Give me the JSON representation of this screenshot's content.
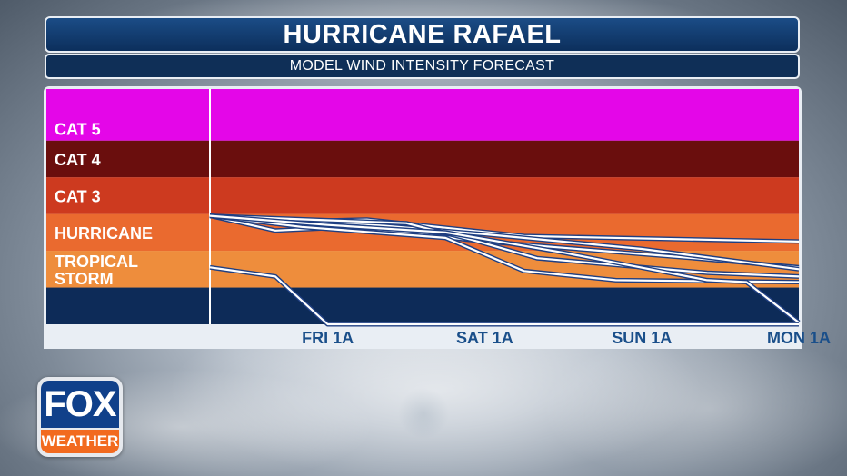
{
  "header": {
    "title": "HURRICANE RAFAEL",
    "subtitle": "MODEL WIND INTENSITY FORECAST"
  },
  "logo": {
    "line1": "FOX",
    "line2": "WEATHER"
  },
  "colors": {
    "cat5": "#e406e8",
    "cat4": "#6a0e0d",
    "cat3": "#cd3a1f",
    "hurricane": "#ea6a2f",
    "tropical_storm": "#ee8d3c",
    "below_tropical_storm": "#0d2b58",
    "model_line": "#ffffff",
    "model_line_outline": "#1f3f82",
    "axis_label": "#1a4f8a"
  },
  "chart_data": {
    "type": "line",
    "title": "",
    "xlabel": "",
    "ylabel": "",
    "x_ticks": [
      "FRI  1A",
      "SAT  1A",
      "SUN  1A",
      "MON  1A"
    ],
    "x_range_hours": [
      -18,
      72
    ],
    "bands": [
      {
        "key": "below",
        "label": "",
        "from": 0,
        "to": 1
      },
      {
        "key": "tropical_storm",
        "label": "TROPICAL\nSTORM",
        "label_lines": [
          "TROPICAL",
          "STORM"
        ],
        "from": 1,
        "to": 2
      },
      {
        "key": "hurricane",
        "label": "HURRICANE",
        "label_lines": [
          "HURRICANE"
        ],
        "from": 2,
        "to": 3
      },
      {
        "key": "cat3",
        "label": "CAT 3",
        "label_lines": [
          "CAT 3"
        ],
        "from": 3,
        "to": 4
      },
      {
        "key": "cat4",
        "label": "CAT 4",
        "label_lines": [
          "CAT 4"
        ],
        "from": 4,
        "to": 5
      },
      {
        "key": "cat5",
        "label": "CAT 5",
        "label_lines": [
          "CAT 5"
        ],
        "from": 5,
        "to": 6.4
      }
    ],
    "series": [
      {
        "values": [
          [
            -18,
            2.95
          ],
          [
            -6,
            2.8
          ],
          [
            6,
            2.85
          ],
          [
            30,
            2.4
          ],
          [
            72,
            2.25
          ]
        ]
      },
      {
        "values": [
          [
            -18,
            2.95
          ],
          [
            -8,
            2.55
          ],
          [
            4,
            2.65
          ],
          [
            24,
            2.25
          ],
          [
            56,
            1.8
          ],
          [
            72,
            1.55
          ]
        ]
      },
      {
        "values": [
          [
            -18,
            2.95
          ],
          [
            4,
            2.75
          ],
          [
            24,
            2.45
          ],
          [
            48,
            2.05
          ],
          [
            72,
            1.5
          ]
        ]
      },
      {
        "values": [
          [
            -18,
            2.95
          ],
          [
            12,
            2.75
          ],
          [
            22,
            2.3
          ],
          [
            32,
            1.8
          ],
          [
            58,
            1.4
          ],
          [
            72,
            1.3
          ]
        ]
      },
      {
        "values": [
          [
            -18,
            2.95
          ],
          [
            -4,
            2.65
          ],
          [
            18,
            2.35
          ],
          [
            30,
            1.45
          ],
          [
            44,
            1.2
          ],
          [
            72,
            1.15
          ]
        ]
      },
      {
        "values": [
          [
            -18,
            2.95
          ],
          [
            0,
            2.7
          ],
          [
            18,
            2.5
          ],
          [
            36,
            1.95
          ],
          [
            58,
            1.2
          ],
          [
            64,
            1.15
          ],
          [
            72,
            0.05
          ]
        ]
      },
      {
        "values": [
          [
            -18,
            1.55
          ],
          [
            -8,
            1.3
          ],
          [
            0,
            0.0
          ],
          [
            72,
            0.0
          ]
        ]
      }
    ]
  }
}
